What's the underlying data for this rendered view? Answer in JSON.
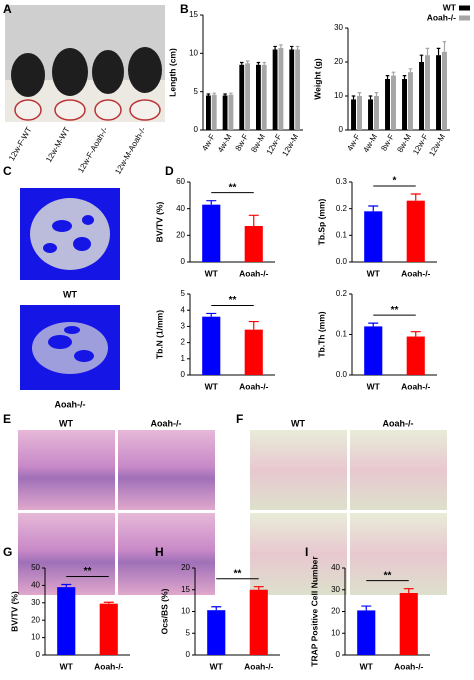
{
  "panel_labels": [
    "A",
    "B",
    "C",
    "D",
    "E",
    "F",
    "G",
    "H",
    "I"
  ],
  "photo_labels": [
    "12w-F-WT",
    "12w-M-WT",
    "12w-F-Aoah-/-",
    "12w-M-Aoah-/-"
  ],
  "micro_ct_labels": [
    "WT",
    "Aoah-/-"
  ],
  "histology_E_labels": [
    "WT",
    "Aoah-/-"
  ],
  "histology_F_labels": [
    "WT",
    "Aoah-/-"
  ],
  "chart_data": [
    {
      "type": "bar",
      "ylabel": "Length (cm)",
      "categories": [
        "4w-F",
        "4w-M",
        "8w-F",
        "8w-M",
        "12w-F",
        "12w-M"
      ],
      "series": [
        {
          "color": "#000000",
          "values": [
            4.5,
            4.5,
            8.5,
            8.5,
            10.5,
            10.5
          ],
          "errors": [
            0.2,
            0.2,
            0.3,
            0.3,
            0.4,
            0.4
          ]
        },
        {
          "color": "#a6a6a6",
          "values": [
            4.6,
            4.6,
            8.7,
            8.5,
            10.7,
            10.5
          ],
          "errors": [
            0.2,
            0.2,
            0.3,
            0.3,
            0.4,
            0.4
          ]
        }
      ],
      "ylim": [
        0,
        15
      ],
      "yticks": [
        0,
        5,
        10,
        15
      ]
    },
    {
      "type": "bar",
      "ylabel": "Weight (g)",
      "categories": [
        "4w-F",
        "4w-M",
        "8w-F",
        "8w-M",
        "12w-F",
        "12w-M"
      ],
      "series": [
        {
          "name": "WT",
          "color": "#000000",
          "values": [
            9,
            9,
            15,
            15,
            20,
            22
          ],
          "errors": [
            1,
            1,
            1,
            1,
            2,
            2
          ]
        },
        {
          "name": "Aoah-/-",
          "color": "#a6a6a6",
          "values": [
            10,
            10,
            16,
            17,
            22,
            23
          ],
          "errors": [
            1,
            1,
            1,
            1,
            2,
            3
          ]
        }
      ],
      "ylim": [
        0,
        30
      ],
      "yticks": [
        0,
        10,
        20,
        30
      ],
      "legend": "top-right"
    },
    {
      "type": "bar",
      "ylabel": "BV/TV (%)",
      "categories": [
        "WT",
        "Aoah-/-"
      ],
      "values": [
        43,
        27
      ],
      "errors": [
        3,
        8
      ],
      "colors": [
        "#0000ff",
        "#ff0000"
      ],
      "ylim": [
        0,
        60
      ],
      "yticks": [
        0,
        20,
        40,
        60
      ],
      "annotation": "**"
    },
    {
      "type": "bar",
      "ylabel": "Tb.Sp (mm)",
      "categories": [
        "WT",
        "Aoah-/-"
      ],
      "values": [
        0.19,
        0.23
      ],
      "errors": [
        0.02,
        0.025
      ],
      "colors": [
        "#0000ff",
        "#ff0000"
      ],
      "ylim": [
        0,
        0.3
      ],
      "yticks": [
        {
          "value": 0,
          "label": "0.0"
        },
        0.1,
        0.2,
        0.3
      ],
      "annotation": "*"
    },
    {
      "type": "bar",
      "ylabel": "Tb.N (1/mm)",
      "categories": [
        "WT",
        "Aoah-/-"
      ],
      "values": [
        3.6,
        2.8
      ],
      "errors": [
        0.2,
        0.5
      ],
      "colors": [
        "#0000ff",
        "#ff0000"
      ],
      "ylim": [
        0,
        5
      ],
      "yticks": [
        0,
        1,
        2,
        3,
        4,
        5
      ],
      "annotation": "**"
    },
    {
      "type": "bar",
      "ylabel": "Tb.Th (mm)",
      "categories": [
        "WT",
        "Aoah-/-"
      ],
      "values": [
        0.12,
        0.095
      ],
      "errors": [
        0.008,
        0.012
      ],
      "colors": [
        "#0000ff",
        "#ff0000"
      ],
      "ylim": [
        0,
        0.2
      ],
      "yticks": [
        {
          "value": 0,
          "label": "0.0"
        },
        0.1,
        0.2
      ],
      "annotation": "**"
    },
    {
      "type": "bar",
      "ylabel": "BV/TV (%)",
      "categories": [
        "WT",
        "Aoah-/-"
      ],
      "values": [
        39,
        29.5
      ],
      "errors": [
        1.5,
        0.8
      ],
      "colors": [
        "#0000ff",
        "#ff0000"
      ],
      "ylim": [
        0,
        50
      ],
      "yticks": [
        0,
        10,
        20,
        30,
        40,
        50
      ],
      "annotation": "**"
    },
    {
      "type": "bar",
      "ylabel": "Ocs/BS (%)",
      "categories": [
        "WT",
        "Aoah-/-"
      ],
      "values": [
        10.3,
        15
      ],
      "errors": [
        0.8,
        0.7
      ],
      "colors": [
        "#0000ff",
        "#ff0000"
      ],
      "ylim": [
        0,
        20
      ],
      "yticks": [
        0,
        5,
        10,
        15,
        20
      ],
      "annotation": "**"
    },
    {
      "type": "bar",
      "ylabel": "TRAP Positive Cell Number",
      "categories": [
        "WT",
        "Aoah-/-"
      ],
      "values": [
        20.5,
        28.5
      ],
      "errors": [
        2,
        2
      ],
      "colors": [
        "#0000ff",
        "#ff0000"
      ],
      "ylim": [
        0,
        40
      ],
      "yticks": [
        0,
        10,
        20,
        30,
        40
      ],
      "annotation": "**"
    }
  ]
}
